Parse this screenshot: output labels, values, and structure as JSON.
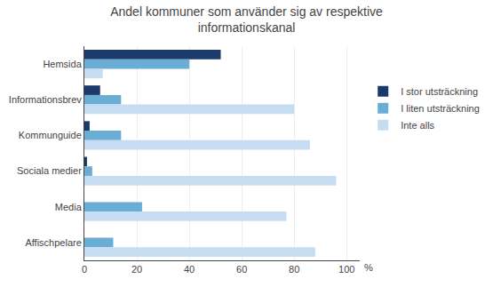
{
  "chart_data": {
    "type": "bar",
    "orientation": "horizontal",
    "title": "Andel kommuner som använder sig av respektive\ninformationskanal",
    "categories": [
      "Hemsida",
      "Informationsbrev",
      "Kommunguide",
      "Sociala medier",
      "Media",
      "Affischpelare"
    ],
    "series": [
      {
        "name": "I stor utsträckning",
        "color": "#1B3A6B",
        "values": [
          52,
          6,
          2,
          1,
          0,
          0
        ]
      },
      {
        "name": "I liten utsträckning",
        "color": "#6AAED6",
        "values": [
          40,
          14,
          14,
          3,
          22,
          11
        ]
      },
      {
        "name": "Inte alls",
        "color": "#C6DCF0",
        "values": [
          7,
          80,
          86,
          96,
          77,
          88
        ]
      }
    ],
    "xlabel": "%",
    "xlim": [
      0,
      105
    ],
    "xticks": [
      0,
      20,
      40,
      60,
      80,
      100
    ],
    "grid": true,
    "legend": "right"
  }
}
